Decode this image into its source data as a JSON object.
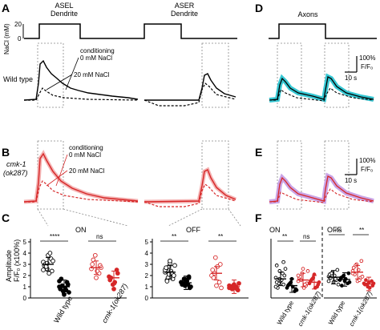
{
  "panels": {
    "A": {
      "letter": "A",
      "dendrite_left": "ASEL\nDendrite",
      "dendrite_right": "ASER\nDendrite",
      "nacl_axis": "NaCl (mM)",
      "nacl_high": "20",
      "nacl_low": "0",
      "conditioning": "conditioning",
      "cond_0": "0 mM NaCl",
      "cond_20": "20 mM NaCl",
      "genotype": "Wild type"
    },
    "B": {
      "letter": "B",
      "genotype_line1": "cmk-1",
      "genotype_line2": "(ok287)",
      "conditioning": "conditioning",
      "cond_0": "0 mM NaCl",
      "cond_20": "20 mM NaCl"
    },
    "C": {
      "letter": "C",
      "on": "ON",
      "off": "OFF",
      "ylabel_line1": "Amplitude",
      "ylabel_line2": "F/F₀ (x100%)",
      "sig_on_wt": "****",
      "sig_on_cmk": "ns",
      "sig_off_wt": "**",
      "sig_off_cmk": "**",
      "xtick_wt": "Wild type",
      "xtick_cmk": "cmk-1(ok287)"
    },
    "D": {
      "letter": "D",
      "title": "Axons",
      "scale_y": "100%",
      "scale_unit": "F/F₀",
      "scale_x": "10 s"
    },
    "E": {
      "letter": "E",
      "scale_y": "100%",
      "scale_unit": "F/F₀",
      "scale_x": "10 s"
    },
    "F": {
      "letter": "F",
      "on": "ON",
      "off": "OFF",
      "sig_on_1": "**",
      "sig_on_2": "ns",
      "sig_off_1": "ns",
      "sig_off_2": "**",
      "xtick_wt": "Wild type",
      "xtick_cmk": "cmk-1(ok287)"
    }
  },
  "colors": {
    "wt": "#000000",
    "mutant": "#d62728",
    "cyan": "#35c7d3",
    "purple": "#b58bd6",
    "shade_red": "#f2a8a8"
  },
  "chart_data": [
    {
      "type": "scatter",
      "panel": "C-ON",
      "ylim": [
        0,
        5
      ],
      "yticks": [
        0,
        1,
        2,
        3,
        4,
        5
      ],
      "categories": [
        "Wild type (cond 0)",
        "Wild type (cond 20)",
        "cmk-1(ok287) (cond 0)",
        "cmk-1(ok287) (cond 20)"
      ],
      "series": [
        {
          "values": [
            3.2,
            2.6,
            3.5,
            2.9,
            3.8,
            2.4,
            3.0,
            2.2,
            3.3,
            2.8,
            4.0,
            2.5,
            3.1
          ]
        },
        {
          "values": [
            1.0,
            0.6,
            1.4,
            0.8,
            0.3,
            1.2,
            1.7,
            0.9,
            0.5,
            1.1,
            0.7,
            1.5
          ]
        },
        {
          "values": [
            2.6,
            3.8,
            2.2,
            3.0,
            1.8,
            2.9,
            3.4,
            2.4,
            2.7
          ]
        },
        {
          "values": [
            1.9,
            1.2,
            2.5,
            1.6,
            0.8,
            2.2,
            1.8,
            1.4
          ]
        }
      ],
      "means": [
        3.0,
        1.0,
        2.7,
        1.8
      ]
    },
    {
      "type": "scatter",
      "panel": "C-OFF",
      "ylim": [
        0,
        5
      ],
      "yticks": [
        0,
        1,
        2,
        3,
        4,
        5
      ],
      "categories": [
        "Wild type (cond 0)",
        "Wild type (cond 20)",
        "cmk-1(ok287) (cond 0)",
        "cmk-1(ok287) (cond 20)"
      ],
      "series": [
        {
          "values": [
            2.3,
            2.8,
            1.9,
            2.6,
            3.1,
            2.0,
            1.6,
            2.4,
            2.9,
            1.8,
            2.2,
            2.5,
            2.1,
            1.7,
            2.7,
            3.3,
            2.0,
            1.5
          ]
        },
        {
          "values": [
            1.4,
            1.1,
            1.8,
            1.2,
            1.6,
            0.9,
            1.3,
            1.5,
            1.0,
            1.7,
            1.2,
            1.4,
            1.1,
            1.9,
            1.3,
            1.5
          ]
        },
        {
          "values": [
            2.0,
            3.6,
            1.4,
            2.5,
            1.1,
            3.0,
            1.8,
            2.8,
            0.9,
            2.2
          ]
        },
        {
          "values": [
            0.9,
            1.1,
            0.8,
            1.0,
            1.2,
            0.7,
            1.0,
            0.9,
            1.3,
            0.8,
            1.0,
            1.1
          ]
        }
      ],
      "means": [
        2.3,
        1.35,
        2.2,
        1.0
      ]
    },
    {
      "type": "scatter",
      "panel": "F-ON",
      "ylim": [
        0,
        5
      ],
      "categories": [
        "Wild type (cond 0)",
        "Wild type (cond 20)",
        "cmk-1(ok287) (cond 0)",
        "cmk-1(ok287) (cond 20)"
      ],
      "series": [
        {
          "values": [
            1.8,
            2.4,
            1.2,
            2.9,
            1.5,
            2.0,
            0.9,
            1.6,
            2.6,
            1.3,
            2.2,
            1.0,
            1.7,
            3.2,
            1.4
          ]
        },
        {
          "values": [
            0.9,
            1.4,
            0.6,
            1.1,
            1.7,
            0.8,
            1.2,
            1.0,
            0.7,
            1.3
          ]
        },
        {
          "values": [
            1.5,
            2.2,
            1.1,
            1.8,
            2.6,
            1.3,
            1.9,
            0.9,
            2.4,
            1.6,
            1.2,
            2.0
          ]
        },
        {
          "values": [
            1.3,
            1.8,
            1.0,
            1.5,
            2.1,
            1.2,
            1.6,
            0.9,
            1.4,
            1.7
          ]
        }
      ],
      "means": [
        1.7,
        1.1,
        1.6,
        1.4
      ]
    },
    {
      "type": "scatter",
      "panel": "F-OFF",
      "ylim": [
        0,
        5
      ],
      "categories": [
        "Wild type (cond 0)",
        "Wild type (cond 20)",
        "cmk-1(ok287) (cond 0)",
        "cmk-1(ok287) (cond 20)"
      ],
      "series": [
        {
          "values": [
            1.9,
            2.3,
            1.6,
            2.1,
            1.4,
            2.5,
            1.8,
            2.0,
            1.2,
            2.2,
            1.7,
            1.5
          ]
        },
        {
          "values": [
            1.6,
            2.0,
            1.3,
            1.8,
            1.5,
            2.2,
            1.1,
            1.7,
            1.4,
            1.9
          ]
        },
        {
          "values": [
            2.4,
            3.0,
            1.8,
            2.7,
            1.5,
            3.3,
            2.1,
            2.5,
            1.9,
            2.9,
            1.6,
            2.2
          ]
        },
        {
          "values": [
            1.3,
            1.0,
            1.5,
            1.2,
            1.4,
            1.1,
            1.6,
            0.9,
            1.3,
            1.2
          ]
        }
      ],
      "means": [
        1.85,
        1.65,
        2.3,
        1.25
      ]
    }
  ]
}
